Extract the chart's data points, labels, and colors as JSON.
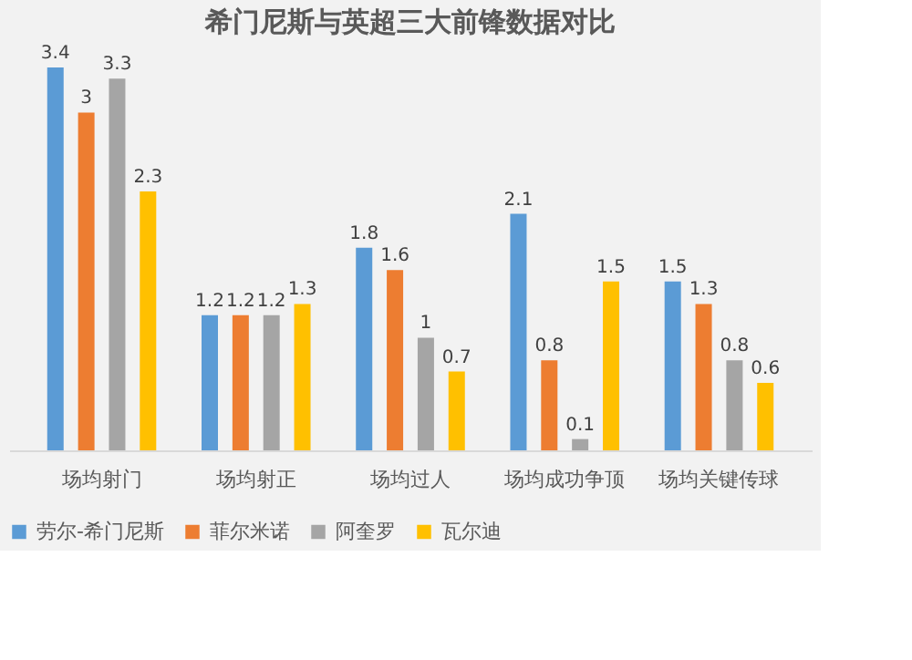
{
  "chart_data": {
    "type": "bar",
    "title": "希门尼斯与英超三大前锋数据对比",
    "categories": [
      "场均射门",
      "场均射正",
      "场均过人",
      "场均成功争顶",
      "场均关键传球"
    ],
    "series": [
      {
        "name": "劳尔-希门尼斯",
        "color": "#5b9bd5",
        "values": [
          3.4,
          1.2,
          1.8,
          2.1,
          1.5
        ]
      },
      {
        "name": "菲尔米诺",
        "color": "#ed7d31",
        "values": [
          3,
          1.2,
          1.6,
          0.8,
          1.3
        ]
      },
      {
        "name": "阿奎罗",
        "color": "#a5a5a5",
        "values": [
          3.3,
          1.2,
          1,
          0.1,
          0.8
        ]
      },
      {
        "name": "瓦尔迪",
        "color": "#ffc000",
        "values": [
          2.3,
          1.3,
          0.7,
          1.5,
          0.6
        ]
      }
    ],
    "data_labels": true,
    "legend": "bottom",
    "grid": false
  }
}
